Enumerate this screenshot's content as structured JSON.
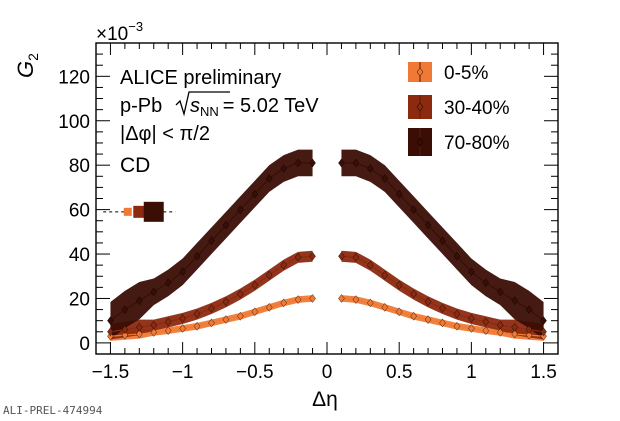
{
  "chart_data": {
    "type": "line",
    "xlabel": "Δη",
    "ylabel": "G",
    "ylabel_sub": "2",
    "y_multiplier": "×10",
    "y_multiplier_exp": "−3",
    "xlim": [
      -1.6,
      1.6
    ],
    "ylim": [
      -5,
      135
    ],
    "xticks": [
      -1.5,
      -1,
      -0.5,
      0,
      0.5,
      1,
      1.5
    ],
    "xtick_labels": [
      "−1.5",
      "−1",
      "−0.5",
      "0",
      "0.5",
      "1",
      "1.5"
    ],
    "yticks": [
      0,
      20,
      40,
      60,
      80,
      100,
      120
    ],
    "ytick_labels": [
      "0",
      "20",
      "40",
      "60",
      "80",
      "100",
      "120"
    ],
    "annotations": {
      "line1": "ALICE preliminary",
      "line2_prefix": "p-Pb",
      "line2_s": "s",
      "line2_sub": "NN",
      "line2_value": "= 5.02 TeV",
      "line3": "|Δφ| < π/2",
      "line4": "CD"
    },
    "legend_position": "top-right",
    "x": [
      -1.5,
      -1.4,
      -1.3,
      -1.2,
      -1.1,
      -1.0,
      -0.9,
      -0.8,
      -0.7,
      -0.6,
      -0.5,
      -0.4,
      -0.3,
      -0.2,
      -0.1,
      0.1,
      0.2,
      0.3,
      0.4,
      0.5,
      0.6,
      0.7,
      0.8,
      0.9,
      1.0,
      1.1,
      1.2,
      1.3,
      1.4,
      1.5
    ],
    "series": [
      {
        "name": "0-5%",
        "color": "#f07a35",
        "band": 1.5,
        "values": [
          3,
          3.5,
          4,
          4.7,
          5.5,
          6.5,
          7.5,
          9,
          10.5,
          12,
          14,
          16,
          18,
          19.5,
          20,
          20,
          19.5,
          18,
          16,
          14,
          12,
          10.5,
          9,
          7.5,
          6.5,
          5.5,
          4.7,
          4,
          3.5,
          3
        ]
      },
      {
        "name": "30-40%",
        "color": "#8c2a10",
        "band": 2.5,
        "values": [
          5,
          6,
          7,
          8,
          9.5,
          11,
          13,
          15.5,
          18.5,
          22,
          26,
          30.5,
          35,
          38.5,
          39,
          39,
          38.5,
          35,
          30.5,
          26,
          22,
          18.5,
          15.5,
          13,
          11,
          9.5,
          8,
          7,
          6,
          5
        ]
      },
      {
        "name": "70-80%",
        "color": "#3b0e05",
        "band": 6,
        "values": [
          10,
          15,
          19,
          23,
          27,
          32,
          39,
          46,
          53,
          60,
          67,
          74,
          78.5,
          81,
          81,
          81,
          81,
          78.5,
          74,
          67,
          60,
          53,
          46,
          39,
          32,
          27,
          23,
          19,
          15,
          10
        ]
      }
    ],
    "marker_key": {
      "y": 59,
      "dashed_from_x": -1.55,
      "dashed_to_x": -1.05,
      "boxes": [
        {
          "x": -1.38,
          "color": "#f07a35",
          "size": 4
        },
        {
          "x": -1.3,
          "color": "#8c2a10",
          "size": 6
        },
        {
          "x": -1.2,
          "color": "#3b0e05",
          "size": 10
        }
      ]
    }
  },
  "footer": {
    "label": "ALI-PREL-474994"
  }
}
